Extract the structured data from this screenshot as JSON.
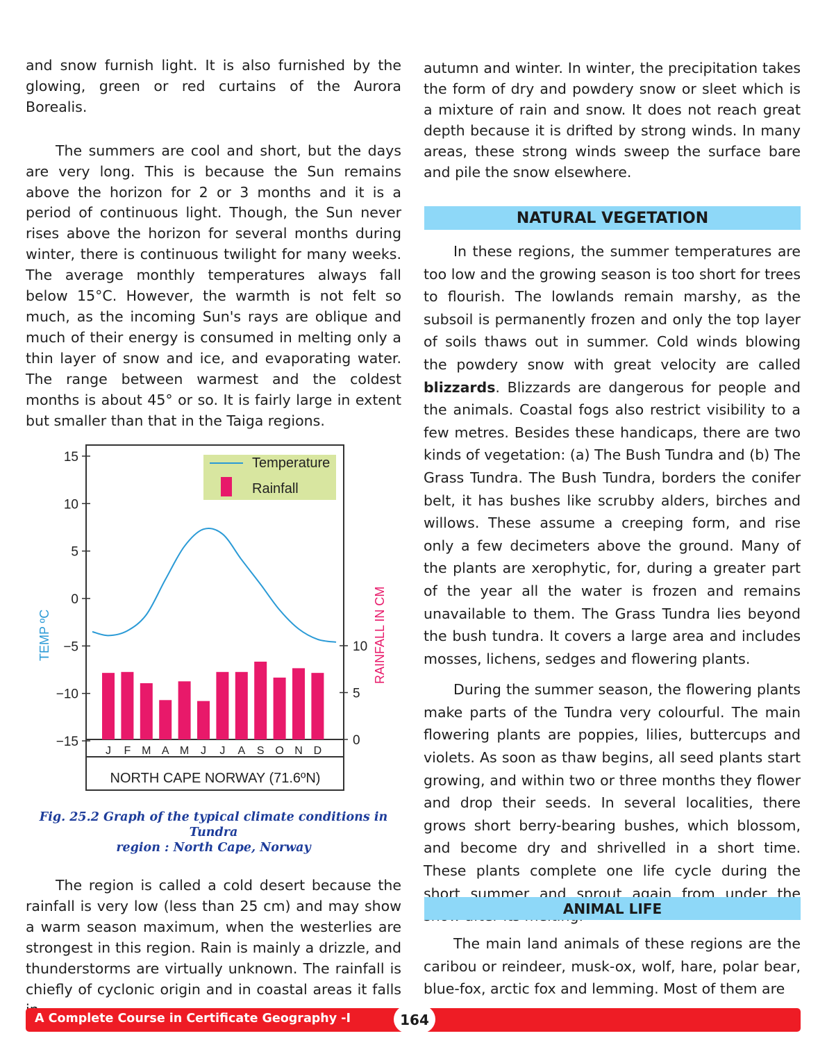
{
  "left_column": {
    "p0": "and snow furnish light. It is also furnished by the glowing, green or red curtains of the Aurora Borealis.",
    "p1": "The summers are cool and short, but the days are very long. This is because the Sun remains above the horizon for 2 or 3 months and it is a period of continuous light. Though, the Sun never rises above the horizon for several months during winter, there is continuous twilight for many weeks. The average monthly temperatures always fall below 15°C. However, the warmth is not felt so much, as the incoming Sun's rays are oblique and much of their energy is consumed in melting only a thin layer of snow and ice, and evaporating water. The range between warmest and the coldest months is about 45° or so. It is fairly large in extent but smaller than that in the Taiga regions.",
    "caption_line1": "Fig. 25.2 Graph of the typical climate conditions in Tundra",
    "caption_line2": "region : North Cape, Norway",
    "p2": "The region is called a cold desert because the rainfall is very low (less than 25 cm) and may show a warm season maximum, when the westerlies are strongest in this region. Rain is mainly a drizzle, and thunderstorms are virtually unknown. The rainfall is chiefly of cyclonic origin and in coastal areas it falls in"
  },
  "right_column": {
    "p0": "autumn and winter. In winter, the precipitation takes the form of dry and powdery snow or sleet which is a mixture of rain and snow. It does not reach great depth because it is drifted by strong winds. In many areas, these strong winds sweep the surface bare and pile the snow elsewhere.",
    "heading1": "NATURAL VEGETATION",
    "p1_before": "In these regions, the summer temperatures are too low and the growing season is too short for trees to flourish. The lowlands remain marshy, as the subsoil is permanently frozen and only the top layer of soils thaws out in summer. Cold winds blowing the powdery snow with great velocity are called ",
    "p1_bold": "blizzards",
    "p1_after": ". Blizzards are dangerous for people and the animals. Coastal fogs also restrict visibility to a few metres. Besides these handicaps, there are two kinds of vegetation: (a) The Bush Tundra and (b) The Grass Tundra. The Bush Tundra, borders the conifer belt, it has bushes like scrubby alders, birches and willows. These assume a creeping form, and rise only a few decimeters above the ground. Many of the plants are xerophytic, for, during a greater part of the year all the water is frozen and remains unavailable to them. The Grass Tundra lies beyond the bush tundra. It covers a large area and includes mosses, lichens, sedges and flowering plants.",
    "p2": "During the summer season, the flowering plants make parts of the Tundra very colourful. The main flowering plants are poppies, lilies, buttercups and violets. As soon as thaw begins, all seed plants start growing, and within two or three months they flower and drop their seeds. In several localities, there grows short berry-bearing bushes, which blossom, and become dry and shrivelled in a short time. These plants complete one life cycle during the short summer and sprout again from under the snow after its melting.",
    "heading2": "ANIMAL LIFE",
    "p3": "The main land animals of these regions are the caribou or reindeer, musk-ox, wolf, hare, polar bear, blue-fox, arctic fox and lemming. Most of them are"
  },
  "footer": {
    "title": "A Complete Course in Certificate Geography -I",
    "page_number": "164"
  },
  "colors": {
    "temperature": "#2a9ad6",
    "rainfall": "#e8196a",
    "heading_bg": "#8ed8f8",
    "footer": "#ee1c25",
    "legend_bg": "#d8e6a0"
  },
  "chart_data": {
    "type": "bar+line",
    "title": "NORTH CAPE NORWAY (71.6ºN)",
    "categories": [
      "J",
      "F",
      "M",
      "A",
      "M",
      "J",
      "J",
      "A",
      "S",
      "O",
      "N",
      "D"
    ],
    "series": [
      {
        "name": "Temperature",
        "type": "line",
        "axis": "left",
        "values": [
          -3.9,
          -3.4,
          -1.7,
          2.0,
          5.5,
          7.3,
          6.8,
          4.1,
          1.5,
          -1.2,
          -3.2,
          -4.3
        ]
      },
      {
        "name": "Rainfall",
        "type": "bar",
        "axis": "right",
        "values": [
          7.1,
          7.2,
          6.0,
          4.2,
          6.2,
          4.1,
          7.2,
          7.2,
          8.3,
          6.6,
          7.6,
          7.1
        ]
      }
    ],
    "ylabel": "TEMP ºC",
    "ylabel_right": "RAINFALL IN CM",
    "ylim": [
      -15,
      15
    ],
    "yticks": [
      "15",
      "10",
      "5",
      "0",
      "−5",
      "−10",
      "−15"
    ],
    "yticks_values": [
      15,
      10,
      5,
      0,
      -5,
      -10,
      -15
    ],
    "ylim_right": [
      0,
      10
    ],
    "yticks_right": [
      "10",
      "5",
      "0"
    ],
    "yticks_right_values": [
      10,
      5,
      0
    ],
    "legend": [
      "Temperature",
      "Rainfall"
    ],
    "legend_position": "top-right"
  }
}
